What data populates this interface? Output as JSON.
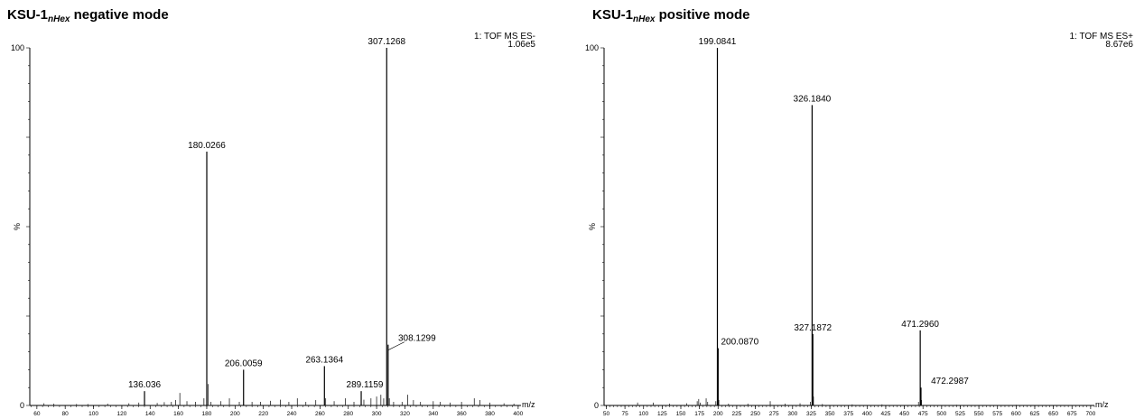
{
  "chart_data": [
    {
      "type": "bar",
      "title": "KSU-1",
      "title_subscript": "nHex",
      "title_suffix": "negative mode",
      "instrument_line1": "1: TOF MS ES-",
      "instrument_line2": "1.06e5",
      "xlabel": "m/z",
      "ylabel": "%",
      "xlim": [
        55,
        402
      ],
      "ylim": [
        0,
        100
      ],
      "xticks": [
        60,
        80,
        100,
        120,
        140,
        160,
        180,
        200,
        220,
        240,
        260,
        280,
        300,
        320,
        340,
        360,
        380,
        400
      ],
      "yticks": [
        0,
        100
      ],
      "labeled_peaks": [
        {
          "mz": 307.1268,
          "label": "307.1268",
          "intensity": 100
        },
        {
          "mz": 180.0266,
          "label": "180.0266",
          "intensity": 71
        },
        {
          "mz": 308.1299,
          "label": "308.1299",
          "intensity": 17
        },
        {
          "mz": 263.1364,
          "label": "263.1364",
          "intensity": 11
        },
        {
          "mz": 206.0059,
          "label": "206.0059",
          "intensity": 10
        },
        {
          "mz": 136.036,
          "label": "136.036",
          "intensity": 4
        },
        {
          "mz": 289.1159,
          "label": "289.1159",
          "intensity": 4
        }
      ],
      "minor_peaks": [
        {
          "mz": 65,
          "intensity": 0.6
        },
        {
          "mz": 72,
          "intensity": 0.5
        },
        {
          "mz": 88,
          "intensity": 0.4
        },
        {
          "mz": 96,
          "intensity": 0.4
        },
        {
          "mz": 110,
          "intensity": 0.5
        },
        {
          "mz": 125,
          "intensity": 0.6
        },
        {
          "mz": 132,
          "intensity": 0.8
        },
        {
          "mz": 145,
          "intensity": 0.7
        },
        {
          "mz": 150,
          "intensity": 0.9
        },
        {
          "mz": 155,
          "intensity": 1.0
        },
        {
          "mz": 158,
          "intensity": 1.5
        },
        {
          "mz": 161,
          "intensity": 3.5
        },
        {
          "mz": 166,
          "intensity": 1.2
        },
        {
          "mz": 172,
          "intensity": 1.0
        },
        {
          "mz": 178,
          "intensity": 2.0
        },
        {
          "mz": 181,
          "intensity": 6.0
        },
        {
          "mz": 183,
          "intensity": 1.0
        },
        {
          "mz": 190,
          "intensity": 1.2
        },
        {
          "mz": 196,
          "intensity": 2.0
        },
        {
          "mz": 203,
          "intensity": 1.0
        },
        {
          "mz": 212,
          "intensity": 1.0
        },
        {
          "mz": 218,
          "intensity": 1.0
        },
        {
          "mz": 225,
          "intensity": 1.3
        },
        {
          "mz": 232,
          "intensity": 1.6
        },
        {
          "mz": 238,
          "intensity": 1.0
        },
        {
          "mz": 244,
          "intensity": 2.0
        },
        {
          "mz": 250,
          "intensity": 1.0
        },
        {
          "mz": 257,
          "intensity": 1.5
        },
        {
          "mz": 264,
          "intensity": 2.0
        },
        {
          "mz": 270,
          "intensity": 1.2
        },
        {
          "mz": 278,
          "intensity": 2.0
        },
        {
          "mz": 284,
          "intensity": 1.0
        },
        {
          "mz": 291,
          "intensity": 1.6
        },
        {
          "mz": 296,
          "intensity": 2.0
        },
        {
          "mz": 300,
          "intensity": 2.5
        },
        {
          "mz": 303,
          "intensity": 3.0
        },
        {
          "mz": 305,
          "intensity": 2.0
        },
        {
          "mz": 309,
          "intensity": 2.0
        },
        {
          "mz": 312,
          "intensity": 1.0
        },
        {
          "mz": 318,
          "intensity": 1.0
        },
        {
          "mz": 322,
          "intensity": 3.0
        },
        {
          "mz": 326,
          "intensity": 1.5
        },
        {
          "mz": 331,
          "intensity": 1.0
        },
        {
          "mz": 340,
          "intensity": 1.2
        },
        {
          "mz": 345,
          "intensity": 1.0
        },
        {
          "mz": 352,
          "intensity": 0.8
        },
        {
          "mz": 360,
          "intensity": 1.0
        },
        {
          "mz": 369,
          "intensity": 2.0
        },
        {
          "mz": 373,
          "intensity": 1.5
        },
        {
          "mz": 380,
          "intensity": 0.8
        },
        {
          "mz": 390,
          "intensity": 0.6
        },
        {
          "mz": 397,
          "intensity": 0.5
        }
      ]
    },
    {
      "type": "bar",
      "title": "KSU-1",
      "title_subscript": "nHex",
      "title_suffix": "positive mode",
      "instrument_line1": "1: TOF MS ES+",
      "instrument_line2": "8.67e6",
      "xlabel": "m/z",
      "ylabel": "%",
      "xlim": [
        47,
        705
      ],
      "ylim": [
        0,
        100
      ],
      "xticks": [
        50,
        75,
        100,
        125,
        150,
        175,
        200,
        225,
        250,
        275,
        300,
        325,
        350,
        375,
        400,
        425,
        450,
        475,
        500,
        525,
        550,
        575,
        600,
        625,
        650,
        675,
        700
      ],
      "yticks": [
        0,
        100
      ],
      "labeled_peaks": [
        {
          "mz": 199.0841,
          "label": "199.0841",
          "intensity": 100
        },
        {
          "mz": 326.184,
          "label": "326.1840",
          "intensity": 84
        },
        {
          "mz": 471.296,
          "label": "471.2960",
          "intensity": 21
        },
        {
          "mz": 327.1872,
          "label": "327.1872",
          "intensity": 20
        },
        {
          "mz": 200.087,
          "label": "200.0870",
          "intensity": 16
        },
        {
          "mz": 472.2987,
          "label": "472.2987",
          "intensity": 5
        }
      ],
      "minor_peaks": [
        {
          "mz": 92,
          "intensity": 0.8
        },
        {
          "mz": 113,
          "intensity": 0.8
        },
        {
          "mz": 135,
          "intensity": 0.5
        },
        {
          "mz": 158,
          "intensity": 0.6
        },
        {
          "mz": 172,
          "intensity": 1.2
        },
        {
          "mz": 174,
          "intensity": 1.8
        },
        {
          "mz": 176,
          "intensity": 0.8
        },
        {
          "mz": 184,
          "intensity": 2.0
        },
        {
          "mz": 186,
          "intensity": 1.0
        },
        {
          "mz": 197,
          "intensity": 1.2
        },
        {
          "mz": 201,
          "intensity": 1.5
        },
        {
          "mz": 214,
          "intensity": 0.5
        },
        {
          "mz": 240,
          "intensity": 0.5
        },
        {
          "mz": 270,
          "intensity": 1.2
        },
        {
          "mz": 290,
          "intensity": 0.5
        },
        {
          "mz": 310,
          "intensity": 0.6
        },
        {
          "mz": 324,
          "intensity": 1.0
        },
        {
          "mz": 328,
          "intensity": 2.5
        },
        {
          "mz": 340,
          "intensity": 0.4
        },
        {
          "mz": 380,
          "intensity": 0.3
        },
        {
          "mz": 420,
          "intensity": 0.3
        },
        {
          "mz": 469,
          "intensity": 1.0
        },
        {
          "mz": 473,
          "intensity": 1.5
        },
        {
          "mz": 520,
          "intensity": 0.2
        },
        {
          "mz": 600,
          "intensity": 0.2
        }
      ]
    }
  ]
}
